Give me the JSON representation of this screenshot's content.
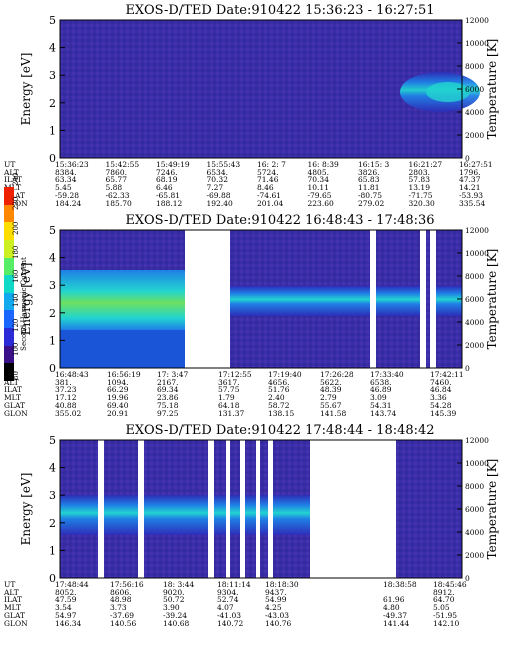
{
  "panels": [
    {
      "title": "EXOS-D/TED   Date:910422  15:36:23 - 16:27:51",
      "eph_labels": [
        "UT",
        "ALT",
        "ILAT",
        "MLT",
        "GLAT",
        "GLON"
      ],
      "columns": [
        [
          "15:36:23",
          "8384.",
          "63.34",
          "5.45",
          "-59.28",
          "184.24"
        ],
        [
          "15:42:55",
          "7860.",
          "65.77",
          "5.88",
          "-62.33",
          "185.70"
        ],
        [
          "15:49:19",
          "7246.",
          "68.19",
          "6.46",
          "-65.81",
          "188.12"
        ],
        [
          "15:55:43",
          "6534.",
          "70.32",
          "7.27",
          "-69.88",
          "192.40"
        ],
        [
          "16: 2: 7",
          "5724.",
          "71.46",
          "8.46",
          "-74.61",
          "201.04"
        ],
        [
          "16: 8:39",
          "4805.",
          "70.34",
          "10.11",
          "-79.65",
          "223.60"
        ],
        [
          "16:15: 3",
          "3826.",
          "65.83",
          "11.81",
          "-80.75",
          "279.02"
        ],
        [
          "16:21:27",
          "2803.",
          "57.83",
          "13.19",
          "-71.75",
          "320.30"
        ],
        [
          "16:27:51",
          "1796.",
          "47.37",
          "14.21",
          "-53.93",
          "335.54"
        ]
      ]
    },
    {
      "title": "EXOS-D/TED   Date:910422  16:48:43 - 17:48:36",
      "eph_labels": [
        "UT",
        "ALT",
        "ILAT",
        "MLT",
        "GLAT",
        "GLON"
      ],
      "columns": [
        [
          "16:48:43",
          "381.",
          "37.23",
          "17.12",
          "40.88",
          "355.02"
        ],
        [
          "16:56:19",
          "1094.",
          "66.29",
          "19.96",
          "69.40",
          "20.91"
        ],
        [
          "17: 3:47",
          "2167.",
          "69.34",
          "23.86",
          "75.18",
          "97.25"
        ],
        [
          "17:12:55",
          "3617.",
          "57.75",
          "1.79",
          "64.18",
          "131.37"
        ],
        [
          "17:19:40",
          "4656.",
          "51.76",
          "2.40",
          "58.72",
          "138.15"
        ],
        [
          "17:26:28",
          "5622.",
          "48.39",
          "2.79",
          "55.67",
          "141.58"
        ],
        [
          "17:33:40",
          "6538.",
          "46.89",
          "3.09",
          "54.31",
          "143.74"
        ],
        [
          "17:42:11",
          "7460.",
          "46.84",
          "3.36",
          "54.28",
          "145.39"
        ]
      ]
    },
    {
      "title": "EXOS-D/TED   Date:910422  17:48:44 - 18:48:42",
      "eph_labels": [
        "UT",
        "ALT",
        "ILAT",
        "MLT",
        "GLAT",
        "GLON"
      ],
      "columns": [
        [
          "17:48:44",
          "8052.",
          "47.59",
          "3.54",
          "54.97",
          "146.34"
        ],
        [
          "17:56:16",
          "8606.",
          "48.98",
          "3.73",
          "-37.69",
          "140.56"
        ],
        [
          "18: 3:44",
          "9020.",
          "50.72",
          "3.90",
          "-39.24",
          "140.68"
        ],
        [
          "18:11:14",
          "9304.",
          "52.74",
          "4.07",
          "-41.03",
          "140.72"
        ],
        [
          "18:18:30",
          "9437.",
          "54.99",
          "4.25",
          "-43.03",
          "140.76"
        ],
        [
          "18:38:58",
          "",
          "61.96",
          "4.80",
          "-49.37",
          "141.44"
        ],
        [
          "18:45:46",
          "8912.",
          "64.70",
          "5.05",
          "-51.95",
          "142.10"
        ]
      ]
    }
  ],
  "colorbar": {
    "title": "Second Harmonic Current",
    "ticks": [
      "80",
      "100",
      "120",
      "140",
      "160",
      "180",
      "200",
      "220",
      "240"
    ],
    "colors": [
      "#000000",
      "#3a1088",
      "#2b2bd8",
      "#1a66ff",
      "#11aaee",
      "#11d9c8",
      "#55ee66",
      "#ccf022",
      "#ffdd00",
      "#ff8800",
      "#ee2200"
    ]
  },
  "chart_data": [
    {
      "type": "heatmap",
      "title": "EXOS-D/TED   Date:910422  15:36:23 - 16:27:51",
      "ylabel": "Energy [eV]",
      "y2label": "Temperature [K]",
      "ylim": [
        0,
        5
      ],
      "y2lim": [
        0,
        12000
      ],
      "yticks": [
        "0",
        "1",
        "2",
        "3",
        "4",
        "5"
      ],
      "y2ticks": [
        "0",
        "2000",
        "4000",
        "6000",
        "8000",
        "10000",
        "12000"
      ]
    },
    {
      "type": "heatmap",
      "title": "EXOS-D/TED   Date:910422  16:48:43 - 17:48:36",
      "ylabel": "Energy [eV]",
      "y2label": "Temperature [K]",
      "ylim": [
        0,
        5
      ],
      "y2lim": [
        0,
        12000
      ],
      "yticks": [
        "0",
        "1",
        "2",
        "3",
        "4",
        "5"
      ],
      "y2ticks": [
        "0",
        "2000",
        "4000",
        "6000",
        "8000",
        "10000",
        "12000"
      ]
    },
    {
      "type": "heatmap",
      "title": "EXOS-D/TED   Date:910422  17:48:44 - 18:48:42",
      "ylabel": "Energy [eV]",
      "y2label": "Temperature [K]",
      "ylim": [
        0,
        5
      ],
      "y2lim": [
        0,
        12000
      ],
      "yticks": [
        "0",
        "1",
        "2",
        "3",
        "4",
        "5"
      ],
      "y2ticks": [
        "0",
        "2000",
        "4000",
        "6000",
        "8000",
        "10000",
        "12000"
      ]
    }
  ]
}
